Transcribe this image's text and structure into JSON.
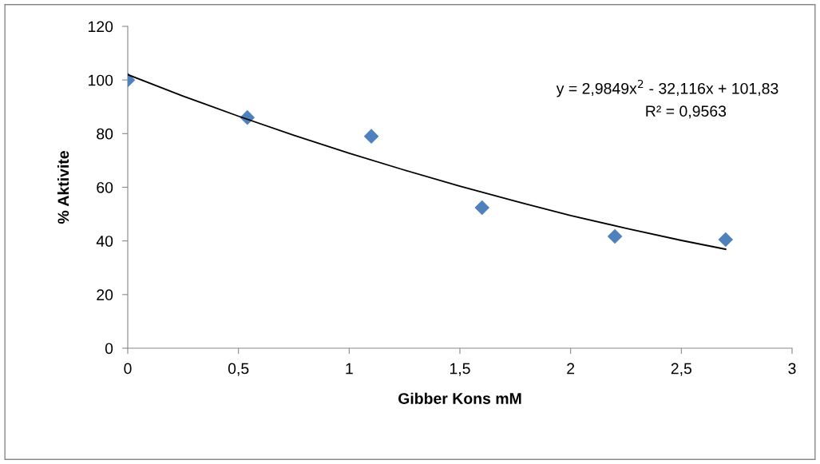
{
  "chart_data": {
    "type": "scatter",
    "xlabel": "Gibber Kons mM",
    "ylabel": "% Aktivite",
    "xlim": [
      0,
      3
    ],
    "xticks": [
      0,
      {
        "value": 0.5,
        "label": "0,5"
      },
      1,
      {
        "value": 1.5,
        "label": "1,5"
      },
      2,
      {
        "value": 2.5,
        "label": "2,5"
      },
      3
    ],
    "ylim": [
      0,
      120
    ],
    "yticks": [
      0,
      20,
      40,
      60,
      80,
      100,
      120
    ],
    "grid": false,
    "legend": false,
    "series": [
      {
        "color": "#4f81bd",
        "marker": "diamond",
        "x": [
          0,
          0.54,
          1.1,
          1.6,
          2.2,
          2.7
        ],
        "values": [
          100,
          86,
          79,
          52.4,
          41.7,
          40.5
        ]
      },
      {
        "type": "line",
        "color": "#000000",
        "marker": "none",
        "line_style": "solid",
        "x": [
          0,
          0.25,
          0.5,
          0.75,
          1,
          1.25,
          1.5,
          1.75,
          2,
          2.25,
          2.5,
          2.7
        ],
        "values": [
          102,
          94,
          86.5,
          79.4,
          72.7,
          66.4,
          60.4,
          54.8,
          49.5,
          44.7,
          40.2,
          36.9
        ]
      }
    ],
    "annotations": [
      "y = 2,9849x$^{2}$ - 32,116x + 101,83",
      "R² = 0,9563"
    ]
  }
}
